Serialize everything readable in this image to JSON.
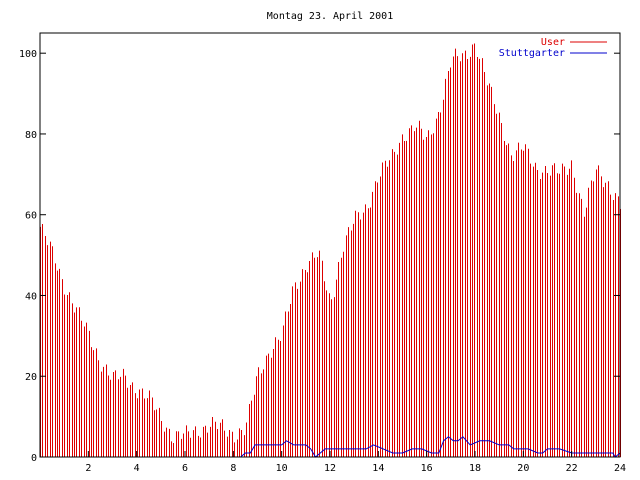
{
  "chart_data": {
    "type": "bar",
    "title": "Montag 23. April 2001",
    "xlabel": "",
    "ylabel": "",
    "xlim": [
      0,
      24
    ],
    "ylim": [
      0,
      105
    ],
    "xticks": [
      2,
      4,
      6,
      8,
      10,
      12,
      14,
      16,
      18,
      20,
      22,
      24
    ],
    "yticks": [
      0,
      20,
      40,
      60,
      80,
      100
    ],
    "grid": false,
    "legend_position": "top-right",
    "colors": {
      "User": "#dd0000",
      "Stuttgarter": "#0000cc"
    },
    "series": [
      {
        "name": "User",
        "style": "impulses",
        "anchors_x": [
          0.0,
          0.5,
          1.0,
          1.5,
          2.0,
          2.5,
          3.0,
          3.5,
          4.0,
          4.5,
          5.0,
          5.5,
          6.0,
          6.5,
          7.0,
          7.5,
          8.0,
          8.5,
          9.0,
          9.5,
          10.0,
          10.5,
          11.0,
          11.5,
          12.0,
          12.5,
          13.0,
          13.5,
          14.0,
          14.5,
          15.0,
          15.5,
          16.0,
          16.5,
          17.0,
          17.5,
          18.0,
          18.5,
          19.0,
          19.5,
          20.0,
          20.5,
          21.0,
          21.5,
          22.0,
          22.5,
          23.0,
          23.5,
          24.0
        ],
        "anchors_y": [
          57,
          50,
          43,
          36,
          30,
          24,
          19,
          20,
          17,
          14,
          10,
          5,
          5,
          7,
          8,
          7,
          6,
          7,
          20,
          27,
          30,
          42,
          48,
          50,
          38,
          52,
          58,
          62,
          70,
          73,
          80,
          82,
          78,
          86,
          98,
          99,
          103,
          92,
          84,
          75,
          76,
          72,
          71,
          70,
          73,
          60,
          71,
          68,
          62
        ],
        "samples": 240
      },
      {
        "name": "Stuttgarter",
        "style": "line",
        "x": [
          0,
          8.3,
          8.5,
          8.7,
          8.9,
          9.5,
          10.0,
          10.2,
          10.5,
          11.0,
          11.2,
          11.4,
          11.6,
          11.8,
          12.5,
          13.0,
          13.2,
          13.5,
          13.8,
          14.2,
          14.6,
          15.0,
          15.4,
          15.8,
          16.2,
          16.5,
          16.7,
          16.9,
          17.1,
          17.3,
          17.5,
          17.8,
          18.2,
          18.6,
          19.0,
          19.4,
          19.6,
          19.8,
          20.2,
          20.6,
          20.8,
          21.0,
          21.5,
          22.0,
          22.4,
          22.6,
          23.0,
          23.4,
          23.7,
          23.8,
          24.0
        ],
        "y": [
          0,
          0,
          1,
          1,
          3,
          3,
          3,
          4,
          3,
          3,
          2,
          0,
          1,
          2,
          2,
          2,
          2,
          2,
          3,
          2,
          1,
          1,
          2,
          2,
          1,
          1,
          4,
          5,
          4,
          4,
          5,
          3,
          4,
          4,
          3,
          3,
          2,
          2,
          2,
          1,
          1,
          2,
          2,
          1,
          1,
          1,
          1,
          1,
          1,
          0,
          1
        ]
      }
    ]
  }
}
